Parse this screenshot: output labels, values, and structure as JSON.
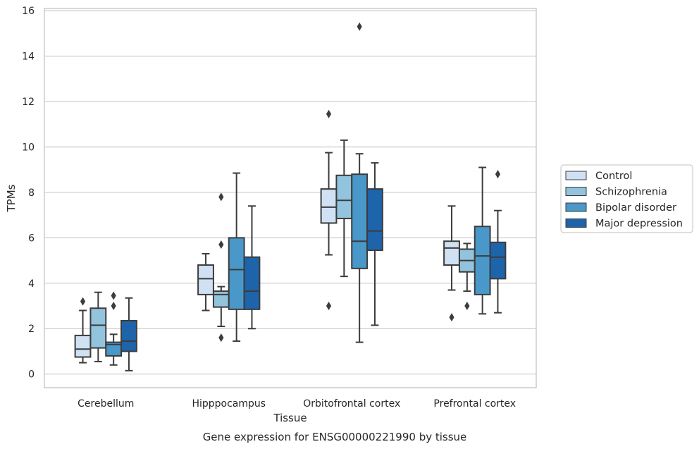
{
  "chart_data": {
    "type": "boxplot",
    "caption": "Gene expression for ENSG00000221990 by tissue",
    "xlabel": "Tissue",
    "ylabel": "TPMs",
    "ylim": [
      -0.6,
      16.1
    ],
    "yticks": [
      0,
      2,
      4,
      6,
      8,
      10,
      12,
      14,
      16
    ],
    "grid": "horizontal",
    "legend_position": "right",
    "categories": [
      "Cerebellum",
      "Hipppocampus",
      "Orbitofrontal cortex",
      "Prefrontal cortex"
    ],
    "series": [
      {
        "name": "Control",
        "color": "#cfe1f2",
        "boxes": [
          {
            "whislo": 0.5,
            "q1": 0.75,
            "med": 1.1,
            "q3": 1.7,
            "whishi": 2.8,
            "fliers": [
              3.2
            ]
          },
          {
            "whislo": 2.8,
            "q1": 3.5,
            "med": 4.2,
            "q3": 4.8,
            "whishi": 5.3,
            "fliers": []
          },
          {
            "whislo": 5.25,
            "q1": 6.65,
            "med": 7.35,
            "q3": 8.15,
            "whishi": 9.75,
            "fliers": [
              11.45,
              3.0
            ]
          },
          {
            "whislo": 3.7,
            "q1": 4.8,
            "med": 5.55,
            "q3": 5.85,
            "whishi": 7.4,
            "fliers": [
              2.5
            ]
          }
        ]
      },
      {
        "name": "Schizophrenia",
        "color": "#93c4de",
        "boxes": [
          {
            "whislo": 0.55,
            "q1": 1.15,
            "med": 2.15,
            "q3": 2.9,
            "whishi": 3.6,
            "fliers": []
          },
          {
            "whislo": 2.1,
            "q1": 2.95,
            "med": 3.5,
            "q3": 3.65,
            "whishi": 3.85,
            "fliers": [
              7.8,
              5.7,
              1.6
            ]
          },
          {
            "whislo": 4.3,
            "q1": 6.85,
            "med": 7.65,
            "q3": 8.75,
            "whishi": 10.3,
            "fliers": []
          },
          {
            "whislo": 3.65,
            "q1": 4.5,
            "med": 5.0,
            "q3": 5.5,
            "whishi": 5.75,
            "fliers": [
              3.0
            ]
          }
        ]
      },
      {
        "name": "Bipolar disorder",
        "color": "#4a97c9",
        "boxes": [
          {
            "whislo": 0.4,
            "q1": 0.8,
            "med": 1.3,
            "q3": 1.4,
            "whishi": 1.75,
            "fliers": [
              3.45,
              3.0
            ]
          },
          {
            "whislo": 1.45,
            "q1": 2.85,
            "med": 4.6,
            "q3": 6.0,
            "whishi": 8.85,
            "fliers": []
          },
          {
            "whislo": 1.4,
            "q1": 4.65,
            "med": 5.85,
            "q3": 8.8,
            "whishi": 9.7,
            "fliers": [
              15.3
            ]
          },
          {
            "whislo": 2.65,
            "q1": 3.5,
            "med": 5.2,
            "q3": 6.5,
            "whishi": 9.1,
            "fliers": []
          }
        ]
      },
      {
        "name": "Major depression",
        "color": "#1e64ab",
        "boxes": [
          {
            "whislo": 0.15,
            "q1": 1.0,
            "med": 1.45,
            "q3": 2.35,
            "whishi": 3.35,
            "fliers": []
          },
          {
            "whislo": 2.0,
            "q1": 2.85,
            "med": 3.65,
            "q3": 5.15,
            "whishi": 7.4,
            "fliers": []
          },
          {
            "whislo": 2.15,
            "q1": 5.45,
            "med": 6.3,
            "q3": 8.15,
            "whishi": 9.3,
            "fliers": []
          },
          {
            "whislo": 2.7,
            "q1": 4.2,
            "med": 5.15,
            "q3": 5.8,
            "whishi": 7.2,
            "fliers": [
              8.8
            ]
          }
        ]
      }
    ]
  }
}
